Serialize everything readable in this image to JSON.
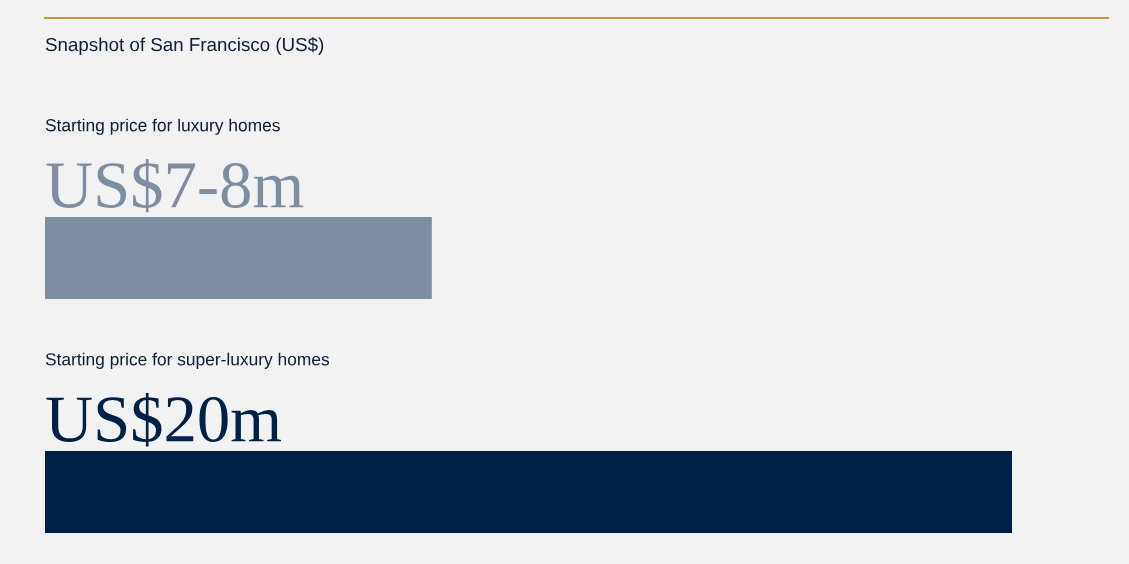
{
  "chart_data": {
    "type": "bar",
    "orientation": "horizontal",
    "title": "Snapshot of San Francisco (US$)",
    "categories": [
      "Starting price for luxury homes",
      "Starting price for super-luxury homes"
    ],
    "values": [
      8000000,
      20000000
    ],
    "colors": [
      "#7f8da3",
      "#002147"
    ],
    "value_labels": [
      "US$7-8m",
      "US$20m"
    ]
  }
}
